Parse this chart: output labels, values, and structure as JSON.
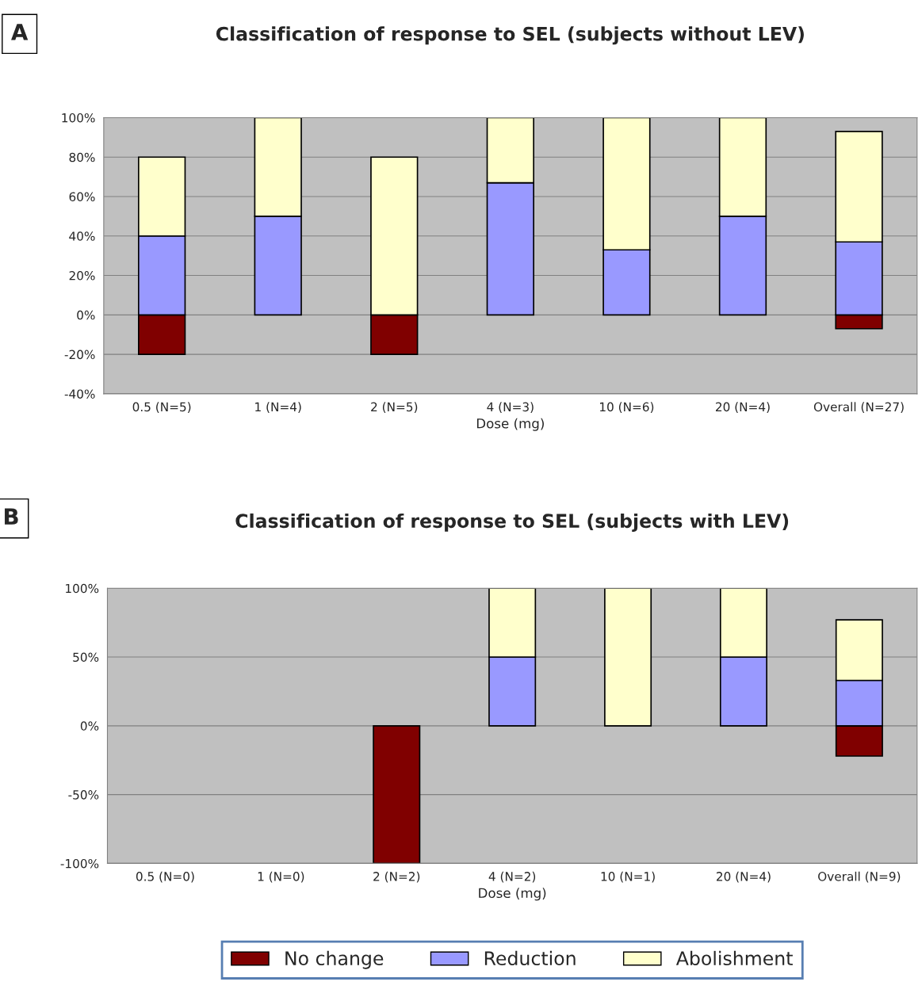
{
  "chart_data": [
    {
      "type": "bar",
      "title": "Classification of response to SEL (subjects without LEV)",
      "xlabel": "Dose (mg)",
      "annotations": [
        "A"
      ],
      "stacked": true,
      "grid": "y",
      "categories": [
        "0.5 (N=5)",
        "1 (N=4)",
        "2 (N=5)",
        "4 (N=3)",
        "10 (N=6)",
        "20 (N=4)",
        "Overall (N=27)"
      ],
      "ylim": [
        -40,
        100
      ],
      "yticks": [
        {
          "value": -40,
          "label": "-40%"
        },
        {
          "value": -20,
          "label": "-20%"
        },
        {
          "value": 0,
          "label": "0%"
        },
        {
          "value": 20,
          "label": "20%"
        },
        {
          "value": 40,
          "label": "40%"
        },
        {
          "value": 60,
          "label": "60%"
        },
        {
          "value": 80,
          "label": "80%"
        },
        {
          "value": 100,
          "label": "100%"
        }
      ],
      "series": [
        {
          "color": "#800000",
          "values": [
            -20,
            null,
            -20,
            null,
            null,
            null,
            -7
          ]
        },
        {
          "color": "#9999ff",
          "values": [
            40,
            50,
            null,
            67,
            33,
            50,
            37
          ]
        },
        {
          "color": "#ffffcc",
          "values": [
            40,
            50,
            80,
            33,
            67,
            50,
            56
          ]
        }
      ]
    },
    {
      "type": "bar",
      "title": "Classification of response to SEL (subjects with LEV)",
      "xlabel": "Dose (mg)",
      "annotations": [
        "B"
      ],
      "stacked": true,
      "grid": "y",
      "legend": "bottom",
      "categories": [
        "0.5 (N=0)",
        "1 (N=0)",
        "2 (N=2)",
        "4 (N=2)",
        "10 (N=1)",
        "20 (N=4)",
        "Overall (N=9)"
      ],
      "ylim": [
        -100,
        100
      ],
      "yticks": [
        {
          "value": -100,
          "label": "-100%"
        },
        {
          "value": -50,
          "label": "-50%"
        },
        {
          "value": 0,
          "label": "0%"
        },
        {
          "value": 50,
          "label": "50%"
        },
        {
          "value": 100,
          "label": "100%"
        }
      ],
      "series": [
        {
          "name": "No change",
          "color": "#800000",
          "values": [
            null,
            null,
            -100,
            null,
            null,
            null,
            -22
          ]
        },
        {
          "name": "Reduction",
          "color": "#9999ff",
          "values": [
            null,
            null,
            null,
            50,
            null,
            50,
            33
          ]
        },
        {
          "name": "Abolishment",
          "color": "#ffffcc",
          "values": [
            null,
            null,
            null,
            50,
            100,
            50,
            44
          ]
        }
      ]
    }
  ]
}
